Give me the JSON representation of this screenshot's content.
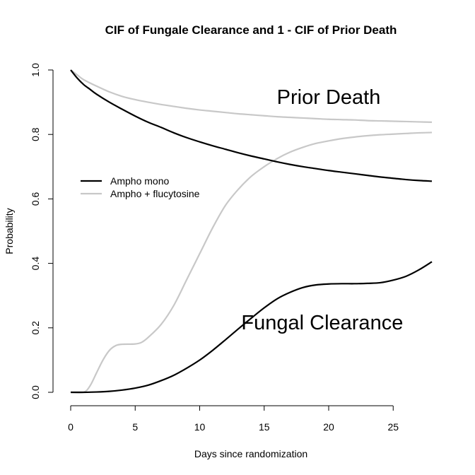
{
  "chart_data": {
    "type": "line",
    "title": "CIF of Fungale  Clearance and 1 - CIF of Prior Death",
    "xlabel": "Days since randomization",
    "ylabel": "Probability",
    "xlim": [
      0,
      28
    ],
    "ylim": [
      0,
      1
    ],
    "xticks": [
      "0",
      "5",
      "10",
      "15",
      "20",
      "25"
    ],
    "yticks": [
      "0.0",
      "0.2",
      "0.4",
      "0.6",
      "0.8",
      "1.0"
    ],
    "legend_position": "left",
    "grid": false,
    "annotations": [
      {
        "text": "Prior Death",
        "x": 20,
        "y": 0.895
      },
      {
        "text": "Fungal Clearance",
        "x": 19.5,
        "y": 0.195
      }
    ],
    "series": [
      {
        "name": "Ampho mono",
        "group": "Prior Death",
        "color": "#000000",
        "points": [
          [
            0,
            1.0
          ],
          [
            0.5,
            0.975
          ],
          [
            1,
            0.955
          ],
          [
            1.5,
            0.94
          ],
          [
            2,
            0.925
          ],
          [
            3,
            0.9
          ],
          [
            4,
            0.878
          ],
          [
            5,
            0.857
          ],
          [
            6,
            0.838
          ],
          [
            7,
            0.822
          ],
          [
            8,
            0.805
          ],
          [
            9,
            0.79
          ],
          [
            10,
            0.777
          ],
          [
            11,
            0.765
          ],
          [
            12,
            0.754
          ],
          [
            13,
            0.743
          ],
          [
            14,
            0.733
          ],
          [
            15,
            0.724
          ],
          [
            16,
            0.715
          ],
          [
            17,
            0.707
          ],
          [
            18,
            0.7
          ],
          [
            19,
            0.694
          ],
          [
            20,
            0.688
          ],
          [
            21,
            0.683
          ],
          [
            22,
            0.678
          ],
          [
            23,
            0.673
          ],
          [
            24,
            0.668
          ],
          [
            25,
            0.664
          ],
          [
            26,
            0.66
          ],
          [
            27,
            0.657
          ],
          [
            28,
            0.655
          ]
        ]
      },
      {
        "name": "Ampho + flucytosine",
        "group": "Prior Death",
        "color": "#c8c8c8",
        "points": [
          [
            0,
            1.0
          ],
          [
            0.5,
            0.985
          ],
          [
            1,
            0.97
          ],
          [
            2,
            0.95
          ],
          [
            3,
            0.932
          ],
          [
            4,
            0.918
          ],
          [
            5,
            0.908
          ],
          [
            6,
            0.9
          ],
          [
            7,
            0.893
          ],
          [
            8,
            0.887
          ],
          [
            9,
            0.881
          ],
          [
            10,
            0.876
          ],
          [
            11,
            0.872
          ],
          [
            12,
            0.868
          ],
          [
            13,
            0.864
          ],
          [
            14,
            0.861
          ],
          [
            15,
            0.858
          ],
          [
            16,
            0.855
          ],
          [
            17,
            0.853
          ],
          [
            18,
            0.851
          ],
          [
            19,
            0.849
          ],
          [
            20,
            0.847
          ],
          [
            21,
            0.846
          ],
          [
            22,
            0.845
          ],
          [
            23,
            0.843
          ],
          [
            24,
            0.842
          ],
          [
            25,
            0.841
          ],
          [
            26,
            0.84
          ],
          [
            27,
            0.839
          ],
          [
            28,
            0.838
          ]
        ]
      },
      {
        "name": "Ampho mono",
        "group": "Fungal Clearance",
        "color": "#000000",
        "points": [
          [
            0,
            0
          ],
          [
            1,
            0
          ],
          [
            2,
            0.001
          ],
          [
            3,
            0.003
          ],
          [
            4,
            0.007
          ],
          [
            5,
            0.013
          ],
          [
            6,
            0.022
          ],
          [
            7,
            0.036
          ],
          [
            8,
            0.053
          ],
          [
            9,
            0.075
          ],
          [
            10,
            0.1
          ],
          [
            11,
            0.13
          ],
          [
            12,
            0.163
          ],
          [
            13,
            0.197
          ],
          [
            14,
            0.23
          ],
          [
            15,
            0.262
          ],
          [
            16,
            0.29
          ],
          [
            17,
            0.31
          ],
          [
            18,
            0.325
          ],
          [
            19,
            0.333
          ],
          [
            20,
            0.336
          ],
          [
            21,
            0.337
          ],
          [
            22,
            0.337
          ],
          [
            23,
            0.338
          ],
          [
            24,
            0.34
          ],
          [
            25,
            0.348
          ],
          [
            26,
            0.36
          ],
          [
            27,
            0.38
          ],
          [
            28,
            0.405
          ]
        ]
      },
      {
        "name": "Ampho + flucytosine",
        "group": "Fungal Clearance",
        "color": "#c8c8c8",
        "points": [
          [
            0,
            0
          ],
          [
            1,
            0
          ],
          [
            1.5,
            0.02
          ],
          [
            2,
            0.06
          ],
          [
            2.5,
            0.1
          ],
          [
            3,
            0.13
          ],
          [
            3.5,
            0.145
          ],
          [
            4,
            0.149
          ],
          [
            5,
            0.15
          ],
          [
            5.5,
            0.155
          ],
          [
            6,
            0.17
          ],
          [
            7,
            0.21
          ],
          [
            8,
            0.27
          ],
          [
            9,
            0.35
          ],
          [
            10,
            0.43
          ],
          [
            11,
            0.51
          ],
          [
            12,
            0.58
          ],
          [
            13,
            0.63
          ],
          [
            14,
            0.67
          ],
          [
            15,
            0.7
          ],
          [
            16,
            0.725
          ],
          [
            17,
            0.745
          ],
          [
            18,
            0.76
          ],
          [
            19,
            0.772
          ],
          [
            20,
            0.78
          ],
          [
            21,
            0.787
          ],
          [
            22,
            0.792
          ],
          [
            23,
            0.796
          ],
          [
            24,
            0.799
          ],
          [
            25,
            0.801
          ],
          [
            26,
            0.803
          ],
          [
            27,
            0.805
          ],
          [
            28,
            0.806
          ]
        ]
      }
    ]
  }
}
